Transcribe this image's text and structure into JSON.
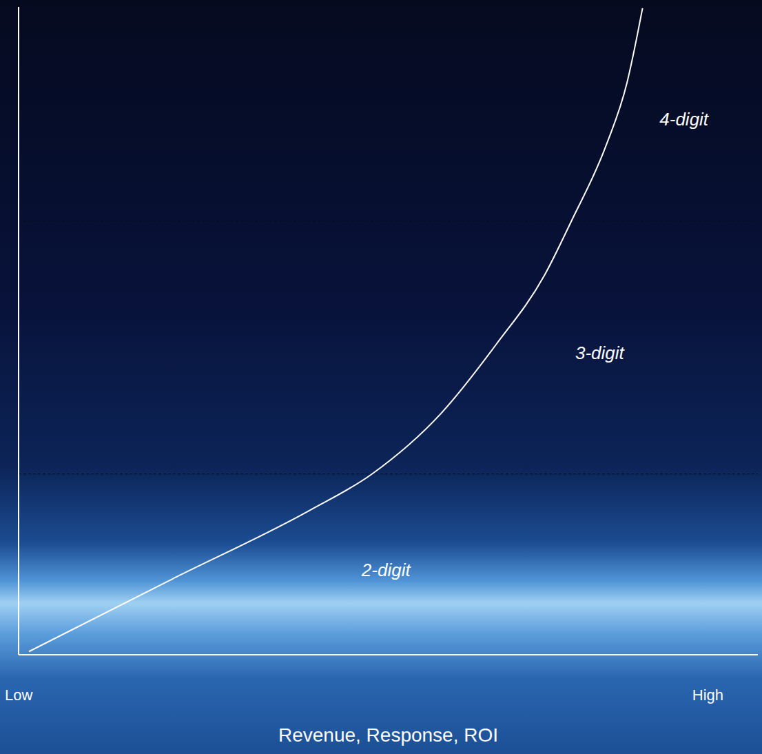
{
  "chart_data": {
    "type": "line",
    "xlabel": "Revenue, Response, ROI",
    "x": [
      1.4,
      20.8,
      39.4,
      47.8,
      57.1,
      64.6,
      71.1,
      74.8,
      79.5,
      82.3,
      83.7,
      84.4
    ],
    "values": [
      0.5,
      11.7,
      22.3,
      27.9,
      37.2,
      47.9,
      58.5,
      67.0,
      78.7,
      88.3,
      95.7,
      99.8
    ],
    "color": "#ffffff",
    "xlim": [
      0,
      100
    ],
    "xticks": [
      {
        "value": 0,
        "label": "Low"
      },
      {
        "value": 100,
        "label": "High"
      }
    ],
    "ylim": [
      0,
      100
    ],
    "yticks": [],
    "grid": false,
    "tick_labels": "x",
    "bands": [
      {
        "label": "2-digit",
        "ylim": [
          0,
          27.9
        ]
      },
      {
        "label": "3-digit",
        "ylim": [
          27.9,
          67.0
        ]
      },
      {
        "label": "4-digit",
        "ylim": [
          67.0,
          100
        ]
      }
    ]
  }
}
